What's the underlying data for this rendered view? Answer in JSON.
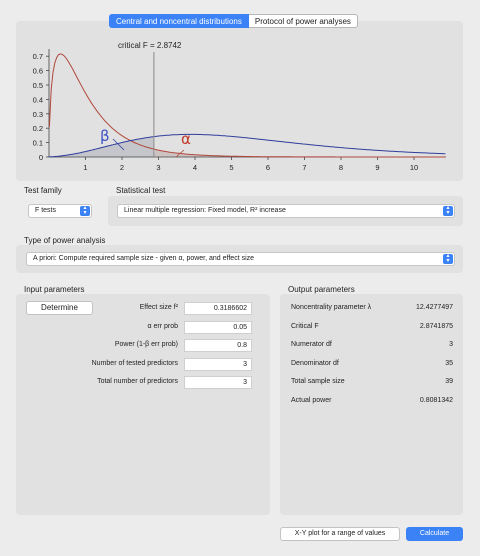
{
  "tabs": {
    "distributions": "Central and noncentral distributions",
    "protocol": "Protocol of power analyses"
  },
  "plot": {
    "critical_label": "critical F = 2.8742",
    "beta_symbol": "β",
    "alpha_symbol": "α",
    "y_ticks": [
      "0.7",
      "0.6",
      "0.5",
      "0.4",
      "0.3",
      "0.2",
      "0.1",
      "0"
    ],
    "x_ticks": [
      "1",
      "2",
      "3",
      "4",
      "5",
      "6",
      "7",
      "8",
      "9",
      "10"
    ],
    "colors": {
      "central": "#b0473a",
      "noncentral": "#2e3c9c",
      "critical": "#8a8a8a"
    }
  },
  "test_family": {
    "label": "Test family",
    "value": "F tests"
  },
  "statistical_test": {
    "label": "Statistical test",
    "value": "Linear multiple regression: Fixed model, R² increase"
  },
  "power_analysis": {
    "label": "Type of power analysis",
    "value": "A priori: Compute required sample size - given α, power, and effect size"
  },
  "input": {
    "title": "Input parameters",
    "determine": "Determine",
    "rows": [
      {
        "label": "Effect size f²",
        "value": "0.3186602"
      },
      {
        "label": "α err prob",
        "value": "0.05"
      },
      {
        "label": "Power (1-β err prob)",
        "value": "0.8"
      },
      {
        "label": "Number of tested predictors",
        "value": "3"
      },
      {
        "label": "Total number of predictors",
        "value": "3"
      }
    ]
  },
  "output": {
    "title": "Output parameters",
    "rows": [
      {
        "label": "Noncentrality parameter λ",
        "value": "12.4277497"
      },
      {
        "label": "Critical F",
        "value": "2.8741875"
      },
      {
        "label": "Numerator df",
        "value": "3"
      },
      {
        "label": "Denominator df",
        "value": "35"
      },
      {
        "label": "Total sample size",
        "value": "39"
      },
      {
        "label": "Actual power",
        "value": "0.8081342"
      }
    ]
  },
  "buttons": {
    "xy_plot": "X-Y plot for a range of values",
    "calculate": "Calculate"
  }
}
